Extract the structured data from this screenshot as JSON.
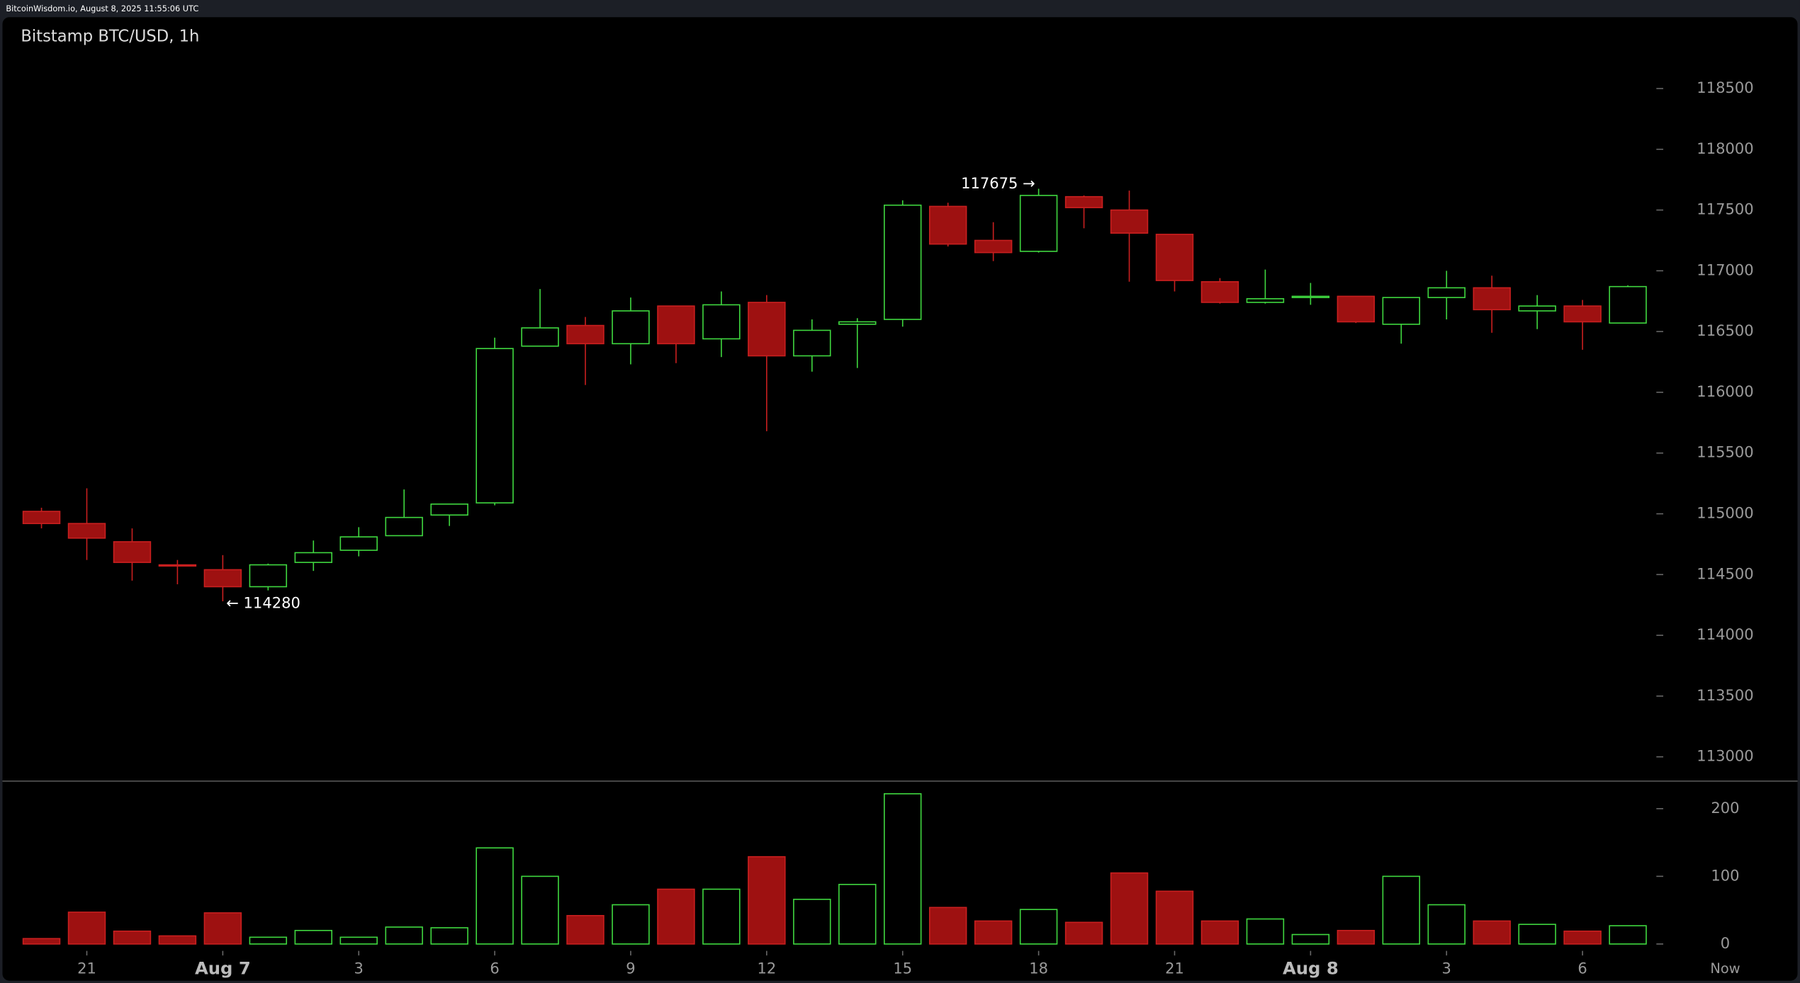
{
  "header": "BitcoinWisdom.io, August 8, 2025 11:55:06 UTC",
  "chart_data": [
    {
      "type": "candlestick",
      "title": "Bitstamp BTC/USD, 1h",
      "open": [
        115020,
        114920,
        114770,
        114580,
        114540,
        114400,
        114600,
        114700,
        114820,
        114990,
        115090,
        116380,
        116550,
        116400,
        116710,
        116440,
        116740,
        116300,
        116560,
        116600,
        117530,
        117250,
        117160,
        117610,
        117500,
        117300,
        116910,
        116740,
        116780,
        116790,
        116560,
        116780,
        116860,
        116670,
        116710,
        116570
      ],
      "high": [
        115050,
        115210,
        114880,
        114620,
        114660,
        114590,
        114780,
        114890,
        115200,
        115080,
        116450,
        116850,
        116620,
        116780,
        116710,
        116830,
        116800,
        116600,
        116610,
        117580,
        117560,
        117400,
        117675,
        117620,
        117660,
        117300,
        116940,
        117010,
        116900,
        116790,
        116780,
        117000,
        116960,
        116800,
        116760,
        116880
      ],
      "low": [
        114880,
        114620,
        114450,
        114420,
        114280,
        114370,
        114530,
        114650,
        114820,
        114900,
        115070,
        116380,
        116060,
        116230,
        116240,
        116290,
        115680,
        116170,
        116200,
        116540,
        117200,
        117080,
        117150,
        117350,
        116910,
        116830,
        116730,
        116730,
        116720,
        116570,
        116400,
        116600,
        116490,
        116520,
        116350,
        116570
      ],
      "close": [
        114920,
        114800,
        114600,
        114570,
        114400,
        114580,
        114680,
        114810,
        114970,
        115080,
        116360,
        116530,
        116400,
        116670,
        116400,
        116720,
        116300,
        116510,
        116580,
        117540,
        117220,
        117150,
        117620,
        117520,
        117310,
        116920,
        116740,
        116770,
        116790,
        116580,
        116780,
        116860,
        116680,
        116710,
        116580,
        116870
      ],
      "up_color": "#3fd63f",
      "down_color": "#c81f1f",
      "down_fill": "#9e1111",
      "ylim": [
        112800,
        118800
      ],
      "yticks": [
        113000,
        113500,
        114000,
        114500,
        115000,
        115500,
        116000,
        116500,
        117000,
        117500,
        118000,
        118500
      ],
      "annotations": [
        {
          "index": 22,
          "value": 117675,
          "label": "117675 →"
        },
        {
          "index": 4,
          "value": 114280,
          "label": "← 114280"
        }
      ]
    },
    {
      "type": "bar",
      "values": [
        8,
        47,
        19,
        12,
        46,
        10,
        20,
        10,
        25,
        24,
        142,
        100,
        42,
        58,
        81,
        81,
        129,
        66,
        88,
        222,
        54,
        34,
        51,
        32,
        105,
        78,
        34,
        37,
        14,
        20,
        100,
        58,
        34,
        29,
        19,
        27
      ],
      "ylim": [
        0,
        230
      ],
      "yticks": [
        0,
        100,
        200
      ],
      "categories": [
        null,
        "21",
        null,
        null,
        "Aug 7",
        null,
        null,
        "3",
        null,
        null,
        "6",
        null,
        null,
        "9",
        null,
        null,
        "12",
        null,
        null,
        "15",
        null,
        null,
        "18",
        null,
        null,
        "21",
        null,
        null,
        "Aug 8",
        null,
        null,
        "3",
        null,
        null,
        "6",
        null
      ],
      "now_label": "Now"
    }
  ]
}
